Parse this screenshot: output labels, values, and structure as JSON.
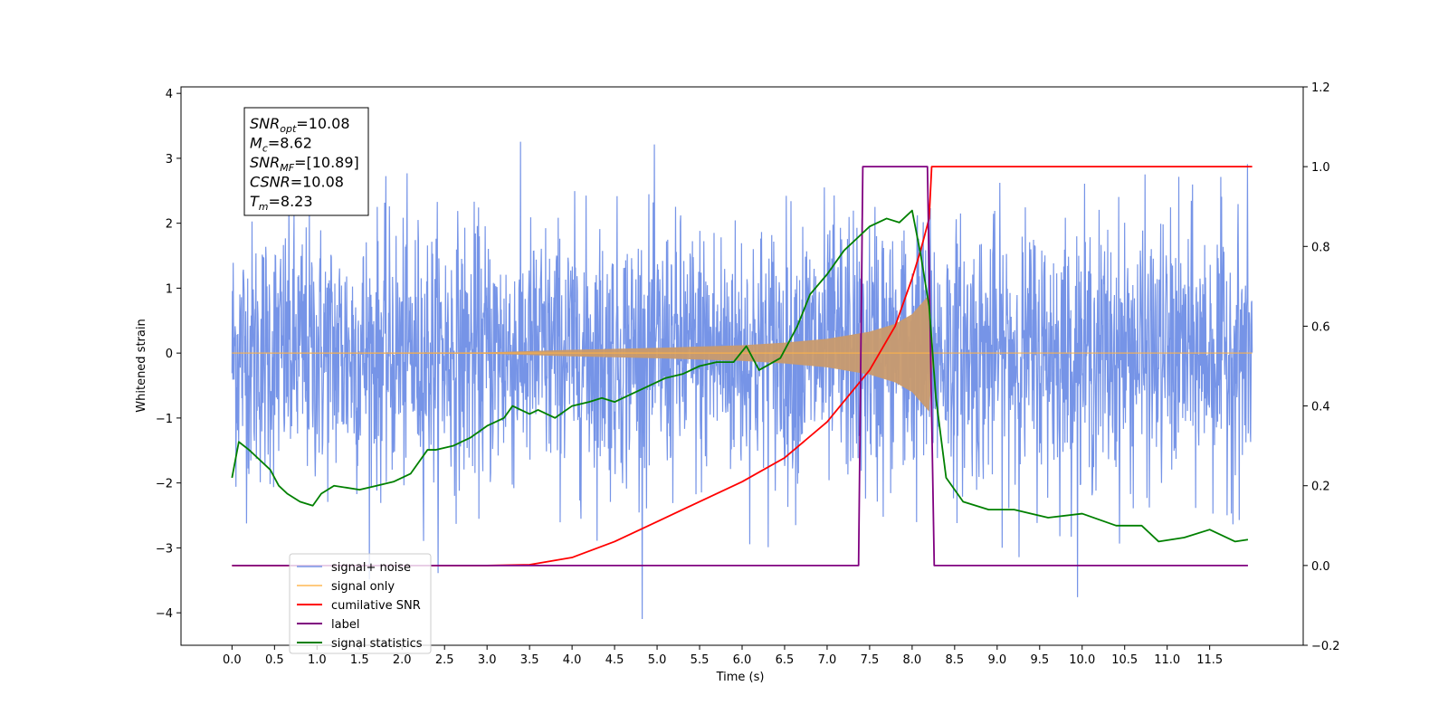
{
  "chart_data": {
    "type": "line",
    "xlabel": "Time (s)",
    "ylabel": "Whitened strain",
    "xlim": [
      -0.6,
      12.6
    ],
    "ylim": [
      -4.5,
      4.1
    ],
    "y2lim": [
      -0.2,
      1.2
    ],
    "x_ticks": [
      0.0,
      0.5,
      1.0,
      1.5,
      2.0,
      2.5,
      3.0,
      3.5,
      4.0,
      4.5,
      5.0,
      5.5,
      6.0,
      6.5,
      7.0,
      7.5,
      8.0,
      8.5,
      9.0,
      9.5,
      10.0,
      10.5,
      11.0,
      11.5
    ],
    "x_tick_labels": [
      "0.0",
      "0.5",
      "1.0",
      "1.5",
      "2.0",
      "2.5",
      "3.0",
      "3.5",
      "4.0",
      "4.5",
      "5.0",
      "5.5",
      "6.0",
      "6.5",
      "7.0",
      "7.5",
      "8.0",
      "8.5",
      "9.0",
      "9.5",
      "10.0",
      "10.5",
      "11.0",
      "11.5"
    ],
    "y_ticks": [
      -4,
      -3,
      -2,
      -1,
      0,
      1,
      2,
      3,
      4
    ],
    "y_tick_labels": [
      "−4",
      "−3",
      "−2",
      "−1",
      "0",
      "1",
      "2",
      "3",
      "4"
    ],
    "y2_ticks": [
      -0.2,
      0.0,
      0.2,
      0.4,
      0.6,
      0.8,
      1.0,
      1.2
    ],
    "y2_tick_labels": [
      "−0.2",
      "0.0",
      "0.2",
      "0.4",
      "0.6",
      "0.8",
      "1.0",
      "1.2"
    ],
    "legend_position": "lower-left",
    "grid": false,
    "series": [
      {
        "name": "signal+ noise",
        "color": "#6f8ee6",
        "axis": "left",
        "x_range": [
          0.0,
          12.0
        ],
        "typical_amplitude": 1.0,
        "min": -4.1,
        "max": 3.7
      },
      {
        "name": "signal only",
        "color": "#ffb347",
        "axis": "left",
        "x_range": [
          0.0,
          12.0
        ],
        "envelope": {
          "x": [
            0.0,
            3.0,
            4.0,
            5.0,
            6.0,
            6.5,
            7.0,
            7.5,
            7.8,
            8.0,
            8.1,
            8.2,
            8.25
          ],
          "amplitude": [
            0.0,
            0.01,
            0.05,
            0.08,
            0.12,
            0.16,
            0.22,
            0.33,
            0.45,
            0.6,
            0.75,
            0.9,
            0.0
          ]
        }
      },
      {
        "name": "cumilative SNR",
        "color": "#ff0000",
        "axis": "right",
        "x": [
          0.0,
          3.0,
          3.5,
          4.0,
          4.5,
          5.0,
          5.5,
          6.0,
          6.5,
          7.0,
          7.5,
          7.8,
          8.0,
          8.1,
          8.2,
          8.23,
          12.0
        ],
        "values": [
          0.0,
          0.0,
          0.002,
          0.02,
          0.06,
          0.11,
          0.16,
          0.21,
          0.27,
          0.36,
          0.49,
          0.6,
          0.72,
          0.79,
          0.87,
          1.0,
          1.0
        ]
      },
      {
        "name": "label",
        "color": "#800080",
        "axis": "right",
        "x": [
          0.0,
          7.37,
          7.42,
          8.18,
          8.26,
          11.95
        ],
        "values": [
          0.0,
          0.0,
          1.0,
          1.0,
          0.0,
          0.0
        ]
      },
      {
        "name": "signal statistics",
        "color": "#008000",
        "axis": "right",
        "x": [
          0.0,
          0.08,
          0.2,
          0.3,
          0.45,
          0.55,
          0.65,
          0.8,
          0.95,
          1.05,
          1.2,
          1.5,
          1.7,
          1.9,
          2.1,
          2.3,
          2.4,
          2.6,
          2.8,
          3.0,
          3.2,
          3.3,
          3.5,
          3.6,
          3.8,
          4.0,
          4.2,
          4.35,
          4.5,
          4.7,
          4.9,
          5.1,
          5.3,
          5.5,
          5.7,
          5.9,
          6.05,
          6.2,
          6.45,
          6.65,
          6.8,
          7.0,
          7.2,
          7.35,
          7.5,
          7.7,
          7.85,
          8.0,
          8.1,
          8.2,
          8.28,
          8.4,
          8.6,
          8.9,
          9.2,
          9.6,
          10.0,
          10.4,
          10.7,
          10.9,
          11.2,
          11.5,
          11.8,
          11.95
        ],
        "values": [
          0.22,
          0.31,
          0.29,
          0.27,
          0.24,
          0.2,
          0.18,
          0.16,
          0.15,
          0.18,
          0.2,
          0.19,
          0.2,
          0.21,
          0.23,
          0.29,
          0.29,
          0.3,
          0.32,
          0.35,
          0.37,
          0.4,
          0.38,
          0.39,
          0.37,
          0.4,
          0.41,
          0.42,
          0.41,
          0.43,
          0.45,
          0.47,
          0.48,
          0.5,
          0.51,
          0.51,
          0.55,
          0.49,
          0.52,
          0.6,
          0.68,
          0.73,
          0.79,
          0.82,
          0.85,
          0.87,
          0.86,
          0.89,
          0.78,
          0.65,
          0.42,
          0.22,
          0.16,
          0.14,
          0.14,
          0.12,
          0.13,
          0.1,
          0.1,
          0.06,
          0.07,
          0.09,
          0.06,
          0.065
        ]
      }
    ],
    "annotation": [
      {
        "name": "SNR",
        "sub": "opt",
        "value": "=10.08"
      },
      {
        "name": "M",
        "sub": "c",
        "value": "=8.62"
      },
      {
        "name": "SNR",
        "sub": "MF",
        "value": "=[10.89]"
      },
      {
        "name": "CSNR",
        "sub": "",
        "value": "=10.08"
      },
      {
        "name": "T",
        "sub": "m",
        "value": "=8.23"
      }
    ]
  }
}
